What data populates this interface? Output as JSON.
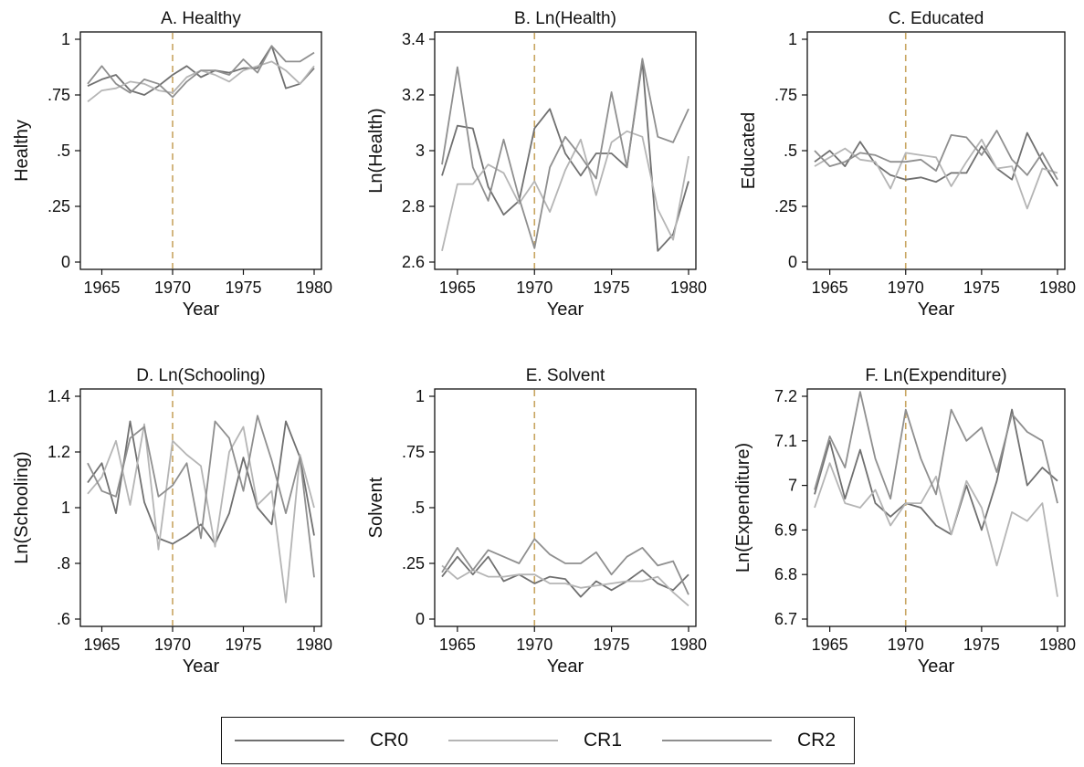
{
  "colors": {
    "CR0": "#707070",
    "CR1": "#b5b5b5",
    "CR2": "#8f8f8f",
    "reference_line": "#c8a561",
    "axis": "#111111"
  },
  "legend": {
    "items": [
      {
        "key": "CR0",
        "label": "CR0"
      },
      {
        "key": "CR1",
        "label": "CR1"
      },
      {
        "key": "CR2",
        "label": "CR2"
      }
    ],
    "placement": "bottom"
  },
  "chart_data": [
    {
      "type": "line",
      "title": "A. Healthy",
      "xlabel": "Year",
      "ylabel": "Healthy",
      "xlim": [
        1964,
        1980
      ],
      "ylim": [
        0,
        1
      ],
      "xticks": [
        1965,
        1970,
        1975,
        1980
      ],
      "yticks": [
        0,
        0.25,
        0.5,
        0.75,
        1
      ],
      "yticklabels": [
        "0",
        ".25",
        ".5",
        ".75",
        "1"
      ],
      "reference_x": 1970,
      "x": [
        1964,
        1965,
        1966,
        1967,
        1968,
        1969,
        1970,
        1971,
        1972,
        1973,
        1974,
        1975,
        1976,
        1977,
        1978,
        1979,
        1980
      ],
      "series": [
        {
          "name": "CR0",
          "values": [
            0.79,
            0.82,
            0.84,
            0.77,
            0.75,
            0.79,
            0.84,
            0.88,
            0.83,
            0.86,
            0.85,
            0.87,
            0.87,
            0.97,
            0.78,
            0.8,
            0.87
          ]
        },
        {
          "name": "CR1",
          "values": [
            0.72,
            0.77,
            0.78,
            0.81,
            0.8,
            0.77,
            0.76,
            0.83,
            0.86,
            0.84,
            0.81,
            0.86,
            0.88,
            0.9,
            0.86,
            0.8,
            0.88
          ]
        },
        {
          "name": "CR2",
          "values": [
            0.8,
            0.88,
            0.8,
            0.76,
            0.82,
            0.8,
            0.74,
            0.81,
            0.86,
            0.86,
            0.84,
            0.91,
            0.85,
            0.97,
            0.9,
            0.9,
            0.94
          ]
        }
      ]
    },
    {
      "type": "line",
      "title": "B. Ln(Health)",
      "xlabel": "Year",
      "ylabel": "Ln(Health)",
      "xlim": [
        1964,
        1980
      ],
      "ylim": [
        2.6,
        3.4
      ],
      "xticks": [
        1965,
        1970,
        1975,
        1980
      ],
      "yticks": [
        2.6,
        2.8,
        3.0,
        3.2,
        3.4
      ],
      "yticklabels": [
        "2.6",
        "2.8",
        "3",
        "3.2",
        "3.4"
      ],
      "reference_x": 1970,
      "x": [
        1964,
        1965,
        1966,
        1967,
        1968,
        1969,
        1970,
        1971,
        1972,
        1973,
        1974,
        1975,
        1976,
        1977,
        1978,
        1979,
        1980
      ],
      "series": [
        {
          "name": "CR0",
          "values": [
            2.91,
            3.09,
            3.08,
            2.87,
            2.77,
            2.82,
            3.08,
            3.15,
            2.99,
            2.91,
            2.99,
            2.99,
            2.94,
            3.32,
            2.64,
            2.7,
            2.89
          ]
        },
        {
          "name": "CR1",
          "values": [
            2.64,
            2.88,
            2.88,
            2.95,
            2.92,
            2.81,
            2.89,
            2.78,
            2.93,
            3.04,
            2.84,
            3.03,
            3.07,
            3.05,
            2.79,
            2.68,
            2.98
          ]
        },
        {
          "name": "CR2",
          "values": [
            2.95,
            3.3,
            2.94,
            2.82,
            3.04,
            2.83,
            2.65,
            2.94,
            3.05,
            2.98,
            2.9,
            3.21,
            2.94,
            3.33,
            3.05,
            3.03,
            3.15
          ]
        }
      ]
    },
    {
      "type": "line",
      "title": "C. Educated",
      "xlabel": "Year",
      "ylabel": "Educated",
      "xlim": [
        1964,
        1980
      ],
      "ylim": [
        0,
        1
      ],
      "xticks": [
        1965,
        1970,
        1975,
        1980
      ],
      "yticks": [
        0,
        0.25,
        0.5,
        0.75,
        1
      ],
      "yticklabels": [
        "0",
        ".25",
        ".5",
        ".75",
        "1"
      ],
      "reference_x": 1970,
      "x": [
        1964,
        1965,
        1966,
        1967,
        1968,
        1969,
        1970,
        1971,
        1972,
        1973,
        1974,
        1975,
        1976,
        1977,
        1978,
        1979,
        1980
      ],
      "series": [
        {
          "name": "CR0",
          "values": [
            0.45,
            0.5,
            0.43,
            0.54,
            0.44,
            0.39,
            0.37,
            0.38,
            0.36,
            0.4,
            0.4,
            0.52,
            0.42,
            0.37,
            0.58,
            0.45,
            0.34
          ]
        },
        {
          "name": "CR1",
          "values": [
            0.43,
            0.47,
            0.51,
            0.46,
            0.45,
            0.33,
            0.49,
            0.48,
            0.47,
            0.34,
            0.45,
            0.55,
            0.42,
            0.43,
            0.24,
            0.42,
            0.4
          ]
        },
        {
          "name": "CR2",
          "values": [
            0.5,
            0.43,
            0.45,
            0.49,
            0.48,
            0.45,
            0.45,
            0.46,
            0.41,
            0.57,
            0.56,
            0.48,
            0.59,
            0.46,
            0.39,
            0.49,
            0.37
          ]
        }
      ]
    },
    {
      "type": "line",
      "title": "D. Ln(Schooling)",
      "xlabel": "Year",
      "ylabel": "Ln(Schooling)",
      "xlim": [
        1964,
        1980
      ],
      "ylim": [
        0.6,
        1.4
      ],
      "xticks": [
        1965,
        1970,
        1975,
        1980
      ],
      "yticks": [
        0.6,
        0.8,
        1.0,
        1.2,
        1.4
      ],
      "yticklabels": [
        ".6",
        ".8",
        "1",
        "1.2",
        "1.4"
      ],
      "reference_x": 1970,
      "x": [
        1964,
        1965,
        1966,
        1967,
        1968,
        1969,
        1970,
        1971,
        1972,
        1973,
        1974,
        1975,
        1976,
        1977,
        1978,
        1979,
        1980
      ],
      "series": [
        {
          "name": "CR0",
          "values": [
            1.09,
            1.16,
            0.98,
            1.31,
            1.02,
            0.89,
            0.87,
            0.9,
            0.94,
            0.87,
            0.98,
            1.18,
            1.0,
            0.94,
            1.31,
            1.18,
            0.9
          ]
        },
        {
          "name": "CR1",
          "values": [
            1.05,
            1.11,
            1.24,
            1.01,
            1.3,
            0.85,
            1.24,
            1.19,
            1.15,
            0.86,
            1.2,
            1.29,
            1.01,
            1.06,
            0.66,
            1.19,
            1.0
          ]
        },
        {
          "name": "CR2",
          "values": [
            1.16,
            1.06,
            1.04,
            1.25,
            1.29,
            1.04,
            1.08,
            1.16,
            0.89,
            1.31,
            1.25,
            1.06,
            1.33,
            1.17,
            0.98,
            1.18,
            0.75
          ]
        }
      ]
    },
    {
      "type": "line",
      "title": "E. Solvent",
      "xlabel": "Year",
      "ylabel": "Solvent",
      "xlim": [
        1964,
        1980
      ],
      "ylim": [
        0,
        1
      ],
      "xticks": [
        1965,
        1970,
        1975,
        1980
      ],
      "yticks": [
        0,
        0.25,
        0.5,
        0.75,
        1
      ],
      "yticklabels": [
        "0",
        ".25",
        ".5",
        ".75",
        "1"
      ],
      "reference_x": 1970,
      "x": [
        1964,
        1965,
        1966,
        1967,
        1968,
        1969,
        1970,
        1971,
        1972,
        1973,
        1974,
        1975,
        1976,
        1977,
        1978,
        1979,
        1980
      ],
      "series": [
        {
          "name": "CR0",
          "values": [
            0.19,
            0.28,
            0.2,
            0.28,
            0.17,
            0.2,
            0.16,
            0.19,
            0.18,
            0.1,
            0.17,
            0.13,
            0.17,
            0.22,
            0.16,
            0.13,
            0.2
          ]
        },
        {
          "name": "CR1",
          "values": [
            0.24,
            0.18,
            0.22,
            0.19,
            0.19,
            0.2,
            0.2,
            0.16,
            0.16,
            0.14,
            0.15,
            0.16,
            0.17,
            0.17,
            0.19,
            0.12,
            0.06
          ]
        },
        {
          "name": "CR2",
          "values": [
            0.21,
            0.32,
            0.22,
            0.31,
            0.28,
            0.25,
            0.36,
            0.29,
            0.25,
            0.25,
            0.3,
            0.2,
            0.28,
            0.32,
            0.24,
            0.26,
            0.11
          ]
        }
      ]
    },
    {
      "type": "line",
      "title": "F. Ln(Expenditure)",
      "xlabel": "Year",
      "ylabel": "Ln(Expenditure)",
      "xlim": [
        1964,
        1980
      ],
      "ylim": [
        6.7,
        7.2
      ],
      "xticks": [
        1965,
        1970,
        1975,
        1980
      ],
      "yticks": [
        6.7,
        6.8,
        6.9,
        7.0,
        7.1,
        7.2
      ],
      "yticklabels": [
        "6.7",
        "6.8",
        "6.9",
        "7",
        "7.1",
        "7.2"
      ],
      "reference_x": 1970,
      "x": [
        1964,
        1965,
        1966,
        1967,
        1968,
        1969,
        1970,
        1971,
        1972,
        1973,
        1974,
        1975,
        1976,
        1977,
        1978,
        1979,
        1980
      ],
      "series": [
        {
          "name": "CR0",
          "values": [
            6.98,
            7.1,
            6.97,
            7.08,
            6.96,
            6.93,
            6.96,
            6.95,
            6.91,
            6.89,
            7.0,
            6.9,
            7.01,
            7.17,
            7.0,
            7.04,
            7.01
          ]
        },
        {
          "name": "CR1",
          "values": [
            6.95,
            7.05,
            6.96,
            6.95,
            6.99,
            6.91,
            6.96,
            6.96,
            7.02,
            6.89,
            7.01,
            6.95,
            6.82,
            6.94,
            6.92,
            6.96,
            6.75
          ]
        },
        {
          "name": "CR2",
          "values": [
            6.99,
            7.11,
            7.04,
            7.21,
            7.06,
            6.97,
            7.17,
            7.06,
            6.98,
            7.17,
            7.1,
            7.13,
            7.03,
            7.16,
            7.12,
            7.1,
            6.96
          ]
        }
      ]
    }
  ]
}
